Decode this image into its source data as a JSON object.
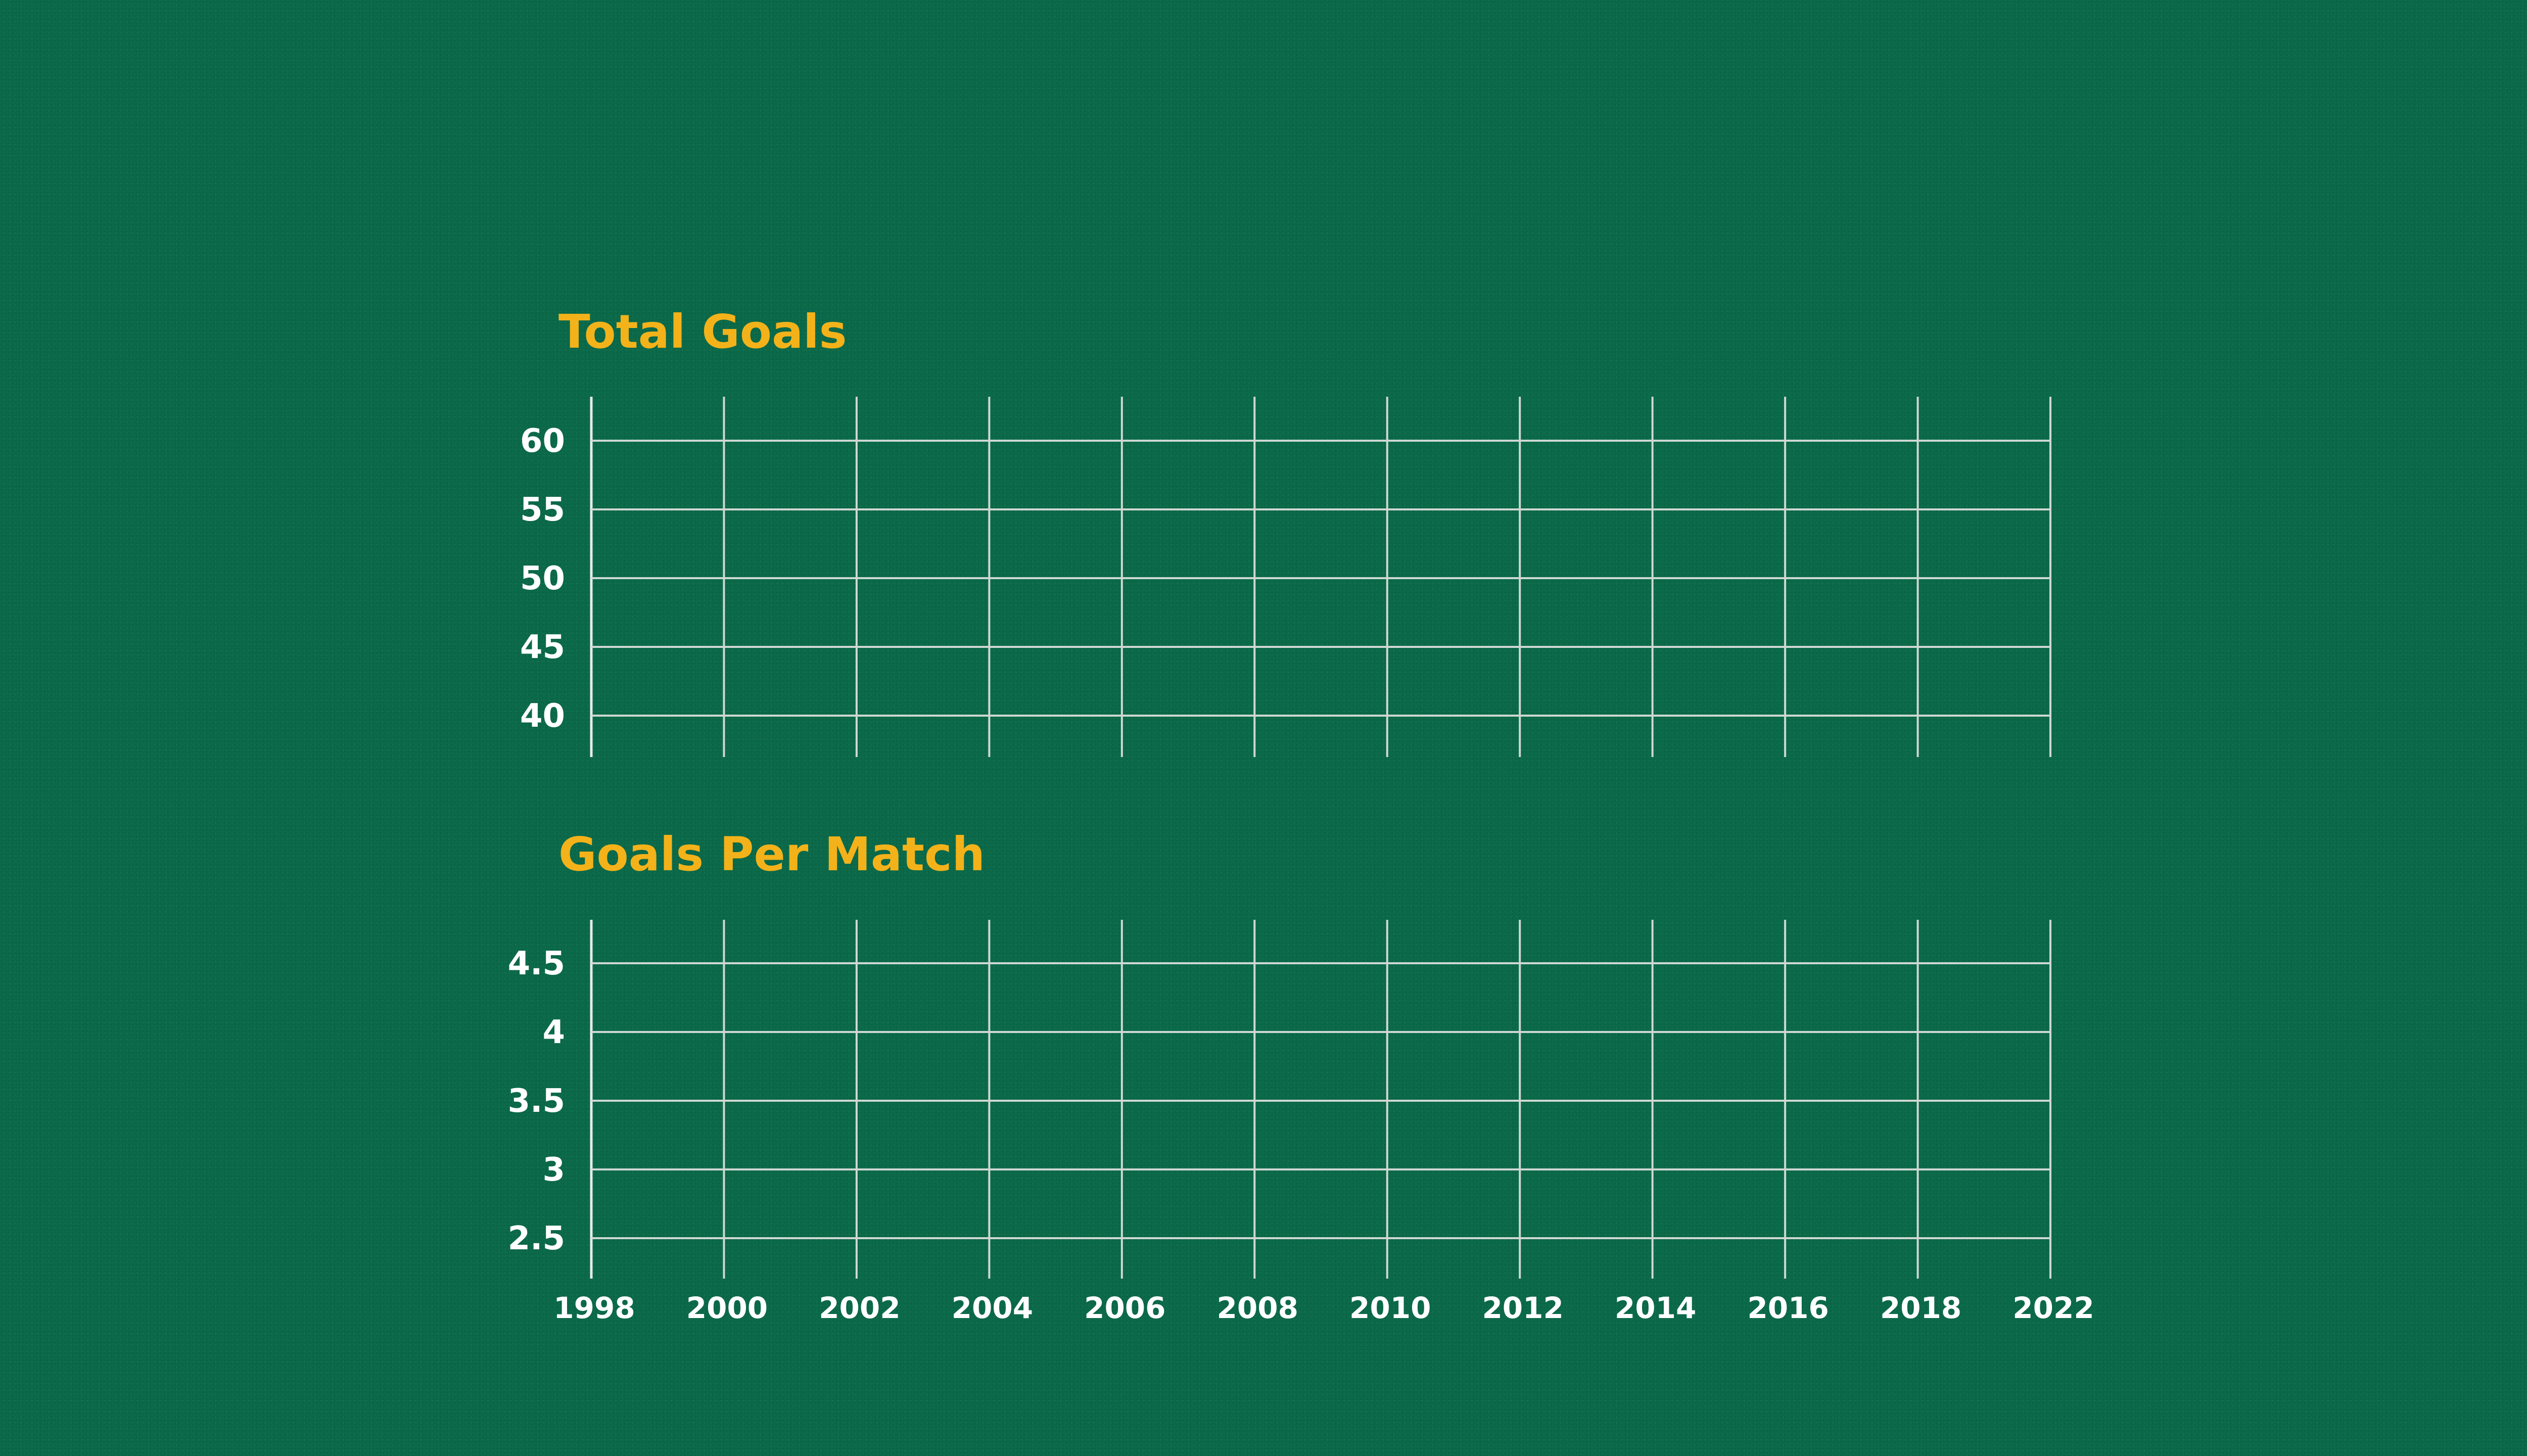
{
  "background_color": "#0b6a4a",
  "title_color": "#f3b21a",
  "label_color": "#ffffff",
  "grid_color": "#cfd8d3",
  "chart_data": [
    {
      "type": "line",
      "title": "Total Goals",
      "xlabel": "",
      "ylabel": "",
      "x_ticks": [
        "1998",
        "2000",
        "2002",
        "2004",
        "2006",
        "2008",
        "2010",
        "2012",
        "2014",
        "2016",
        "2018",
        "2022"
      ],
      "y_ticks": [
        "60",
        "55",
        "50",
        "45",
        "40"
      ],
      "ylim": [
        37,
        64
      ],
      "grid": true,
      "series": []
    },
    {
      "type": "line",
      "title": "Goals Per Match",
      "xlabel": "",
      "ylabel": "",
      "x_ticks": [
        "1998",
        "2000",
        "2002",
        "2004",
        "2006",
        "2008",
        "2010",
        "2012",
        "2014",
        "2016",
        "2018",
        "2022"
      ],
      "y_ticks": [
        "4.5",
        "4",
        "3.5",
        "3",
        "2.5"
      ],
      "ylim": [
        2.5,
        4.8
      ],
      "grid": true,
      "series": []
    }
  ]
}
